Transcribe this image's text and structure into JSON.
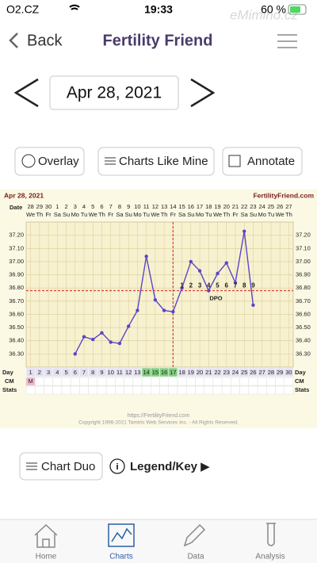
{
  "status_bar": {
    "carrier": "O2.CZ",
    "time": "19:33",
    "battery": "60 %",
    "watermark": "eMimino.cz"
  },
  "nav": {
    "back": "Back",
    "title": "Fertility Friend"
  },
  "date_picker": {
    "date": "Apr 28, 2021"
  },
  "buttons": [
    "Overlay",
    "Charts Like Mine",
    "Annotate"
  ],
  "chart_data": {
    "type": "line",
    "date": "Apr 28, 2021",
    "site": "FertilityFriend.com",
    "row_labels": {
      "date": "Date",
      "day": "Day",
      "cm": "CM",
      "stats": "Stats"
    },
    "dates": [
      28,
      29,
      30,
      1,
      2,
      3,
      4,
      5,
      6,
      7,
      8,
      9,
      10,
      11,
      12,
      13,
      14,
      15,
      16,
      17,
      18,
      19,
      20,
      21,
      22,
      23,
      24,
      25,
      26,
      27
    ],
    "weekdays": [
      "We",
      "Th",
      "Fr",
      "Sa",
      "Su",
      "Mo",
      "Tu",
      "We",
      "Th",
      "Fr",
      "Sa",
      "Su",
      "Mo",
      "Tu",
      "We",
      "Th",
      "Fr",
      "Sa",
      "Su",
      "Mo",
      "Tu",
      "We",
      "Th",
      "Fr",
      "Sa",
      "Su",
      "Mo",
      "Tu",
      "We",
      "Th"
    ],
    "x": [
      1,
      2,
      3,
      4,
      5,
      6,
      7,
      8,
      9,
      10,
      11,
      12,
      13,
      14,
      15,
      16,
      17,
      18,
      19,
      20,
      21,
      22,
      23,
      24,
      25,
      26,
      27,
      28,
      29,
      30
    ],
    "xlim": [
      0.5,
      30.5
    ],
    "values": [
      null,
      null,
      null,
      null,
      null,
      36.3,
      36.43,
      36.41,
      36.46,
      36.39,
      36.38,
      36.51,
      36.63,
      37.04,
      36.71,
      36.63,
      36.62,
      36.8,
      37.0,
      36.93,
      36.78,
      36.91,
      36.99,
      36.84,
      37.23,
      36.67,
      null,
      null,
      null,
      null
    ],
    "color": "#5a46c8",
    "ylim": [
      36.2,
      37.3
    ],
    "yticks": [
      {
        "value": 36.3,
        "label": "36.30"
      },
      {
        "value": 36.4,
        "label": "36.40"
      },
      {
        "value": 36.5,
        "label": "36.50"
      },
      {
        "value": 36.6,
        "label": "36.60"
      },
      {
        "value": 36.7,
        "label": "36.70"
      },
      {
        "value": 36.8,
        "label": "36.80"
      },
      {
        "value": 36.9,
        "label": "36.90"
      },
      {
        "value": 37.0,
        "label": "37.00"
      },
      {
        "value": 37.1,
        "label": "37.10"
      },
      {
        "value": 37.2,
        "label": "37.20"
      }
    ],
    "grid": true,
    "coverline": 36.78,
    "ovulation_day": 17,
    "dpo": [
      1,
      2,
      3,
      4,
      5,
      6,
      7,
      8,
      9
    ],
    "dpo_label": "DPO",
    "fertile_days": [
      14,
      15,
      16,
      17
    ],
    "cm": [
      "M",
      null,
      null,
      null,
      null,
      null,
      null,
      null,
      null,
      null,
      null,
      null,
      null,
      null,
      null,
      null,
      null,
      null,
      null,
      null,
      null,
      null,
      null,
      null,
      null,
      null,
      null,
      null,
      null,
      null
    ],
    "footer": [
      "https://FertilityFriend.com",
      "Copyright 1996-2021 Tamtris Web Services Inc. - All Rights Reserved."
    ]
  },
  "bottom_buttons": {
    "chart_duo": "Chart Duo",
    "legend": "Legend/Key ▶"
  },
  "tabs": [
    "Home",
    "Charts",
    "Data",
    "Analysis"
  ],
  "active_tab": 1
}
